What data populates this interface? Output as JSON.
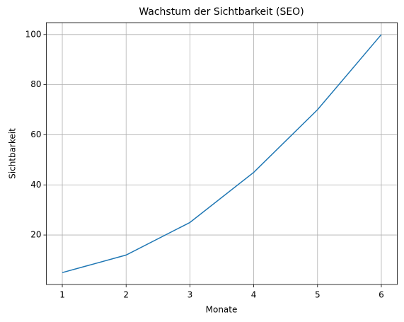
{
  "chart_data": {
    "type": "line",
    "title": "Wachstum der Sichtbarkeit (SEO)",
    "xlabel": "Monate",
    "ylabel": "Sichtbarkeit",
    "x": [
      1,
      2,
      3,
      4,
      5,
      6
    ],
    "series": [
      {
        "color": "#1f77b4",
        "values": [
          5,
          12,
          25,
          45,
          70,
          100
        ]
      }
    ],
    "xlim": [
      0.75,
      6.25
    ],
    "ylim": [
      0.25,
      104.75
    ],
    "xticks": [
      1,
      2,
      3,
      4,
      5,
      6
    ],
    "yticks": [
      20,
      40,
      60,
      80,
      100
    ],
    "grid": true
  }
}
